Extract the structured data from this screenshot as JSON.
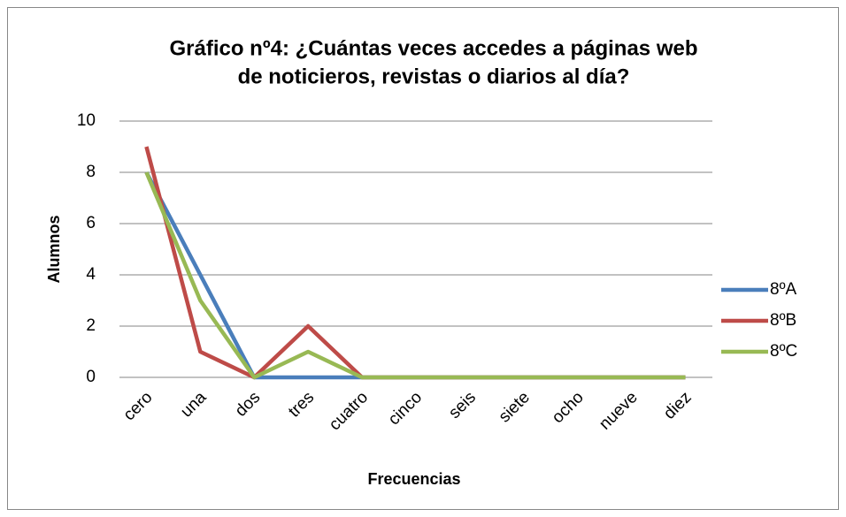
{
  "chart_data": {
    "type": "line",
    "title": [
      "Gráfico nº4: ¿Cuántas veces accedes a páginas web",
      "de noticieros, revistas o diarios al día?"
    ],
    "x_label": "Frecuencias",
    "y_label": "Alumnos",
    "categories": [
      "cero",
      "una",
      "dos",
      "tres",
      "cuatro",
      "cinco",
      "seis",
      "siete",
      "ocho",
      "nueve",
      "diez"
    ],
    "series": [
      {
        "name": "8ºA",
        "color": "#4a7ebb",
        "values": [
          8,
          4,
          0,
          0,
          0,
          0,
          0,
          0,
          0,
          0,
          0
        ]
      },
      {
        "name": "8ºB",
        "color": "#be4b48",
        "values": [
          9,
          1,
          0,
          2,
          0,
          0,
          0,
          0,
          0,
          0,
          0
        ]
      },
      {
        "name": "8ºC",
        "color": "#98b954",
        "values": [
          8,
          3,
          0,
          1,
          0,
          0,
          0,
          0,
          0,
          0,
          0
        ]
      }
    ],
    "ylim": [
      0,
      10
    ],
    "yticks": [
      0,
      2,
      4,
      6,
      8,
      10
    ],
    "grid": true,
    "legend": "right"
  }
}
